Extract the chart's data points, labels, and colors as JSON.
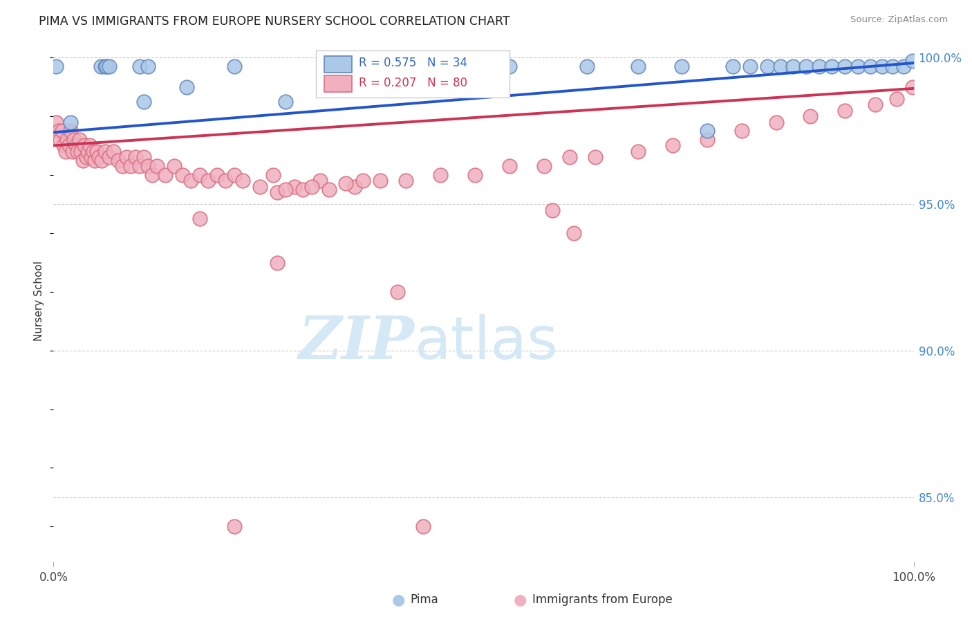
{
  "title": "PIMA VS IMMIGRANTS FROM EUROPE NURSERY SCHOOL CORRELATION CHART",
  "source_text": "Source: ZipAtlas.com",
  "ylabel": "Nursery School",
  "xlim": [
    0.0,
    1.0
  ],
  "ylim": [
    0.828,
    1.006
  ],
  "ytick_labels": [
    "85.0%",
    "90.0%",
    "95.0%",
    "100.0%"
  ],
  "ytick_values": [
    0.85,
    0.9,
    0.95,
    1.0
  ],
  "blue_color": "#aac8e8",
  "pink_color": "#f0b0c0",
  "blue_edge": "#6688bb",
  "pink_edge": "#d87080",
  "trend_blue": "#2255cc",
  "trend_pink": "#cc3355",
  "legend_blue_r": "R = 0.575",
  "legend_blue_n": "N = 34",
  "legend_pink_r": "R = 0.207",
  "legend_pink_n": "N = 80",
  "watermark_color": "#d5e8f5",
  "blue_x": [
    0.003,
    0.02,
    0.055,
    0.06,
    0.062,
    0.065,
    0.1,
    0.105,
    0.11,
    0.155,
    0.21,
    0.27,
    0.36,
    0.42,
    0.53,
    0.62,
    0.68,
    0.73,
    0.76,
    0.79,
    0.81,
    0.83,
    0.845,
    0.86,
    0.875,
    0.89,
    0.905,
    0.92,
    0.935,
    0.95,
    0.963,
    0.975,
    0.988,
    0.999
  ],
  "blue_y": [
    0.997,
    0.978,
    0.997,
    0.997,
    0.997,
    0.997,
    0.997,
    0.985,
    0.997,
    0.99,
    0.997,
    0.985,
    0.997,
    0.997,
    0.997,
    0.997,
    0.997,
    0.997,
    0.975,
    0.997,
    0.997,
    0.997,
    0.997,
    0.997,
    0.997,
    0.997,
    0.997,
    0.997,
    0.997,
    0.997,
    0.997,
    0.997,
    0.997,
    0.999
  ],
  "pink_x": [
    0.003,
    0.006,
    0.008,
    0.01,
    0.012,
    0.014,
    0.016,
    0.018,
    0.02,
    0.022,
    0.024,
    0.026,
    0.028,
    0.03,
    0.032,
    0.034,
    0.036,
    0.038,
    0.04,
    0.042,
    0.044,
    0.046,
    0.048,
    0.05,
    0.053,
    0.056,
    0.06,
    0.065,
    0.07,
    0.075,
    0.08,
    0.085,
    0.09,
    0.095,
    0.1,
    0.105,
    0.11,
    0.115,
    0.12,
    0.13,
    0.14,
    0.15,
    0.16,
    0.17,
    0.18,
    0.19,
    0.2,
    0.21,
    0.22,
    0.24,
    0.255,
    0.28,
    0.31,
    0.35,
    0.26,
    0.27,
    0.29,
    0.3,
    0.32,
    0.34,
    0.36,
    0.38,
    0.41,
    0.45,
    0.49,
    0.53,
    0.57,
    0.6,
    0.63,
    0.68,
    0.72,
    0.76,
    0.8,
    0.84,
    0.88,
    0.92,
    0.955,
    0.98,
    0.21,
    0.999
  ],
  "pink_y": [
    0.978,
    0.975,
    0.972,
    0.975,
    0.97,
    0.968,
    0.972,
    0.97,
    0.975,
    0.968,
    0.972,
    0.97,
    0.968,
    0.972,
    0.968,
    0.965,
    0.97,
    0.966,
    0.968,
    0.97,
    0.966,
    0.968,
    0.965,
    0.968,
    0.966,
    0.965,
    0.968,
    0.966,
    0.968,
    0.965,
    0.963,
    0.966,
    0.963,
    0.966,
    0.963,
    0.966,
    0.963,
    0.96,
    0.963,
    0.96,
    0.963,
    0.96,
    0.958,
    0.96,
    0.958,
    0.96,
    0.958,
    0.96,
    0.958,
    0.956,
    0.96,
    0.956,
    0.958,
    0.956,
    0.954,
    0.955,
    0.955,
    0.956,
    0.955,
    0.957,
    0.958,
    0.958,
    0.958,
    0.96,
    0.96,
    0.963,
    0.963,
    0.966,
    0.966,
    0.968,
    0.97,
    0.972,
    0.975,
    0.978,
    0.98,
    0.982,
    0.984,
    0.986,
    0.84,
    0.99
  ],
  "pink_outlier_x": [
    0.17,
    0.26,
    0.4,
    0.43,
    0.58,
    0.605
  ],
  "pink_outlier_y": [
    0.945,
    0.93,
    0.92,
    0.84,
    0.948,
    0.94
  ],
  "blue_trendline_start": 0.9745,
  "blue_trendline_end": 0.9982,
  "pink_trendline_start": 0.97,
  "pink_trendline_end": 0.9895
}
